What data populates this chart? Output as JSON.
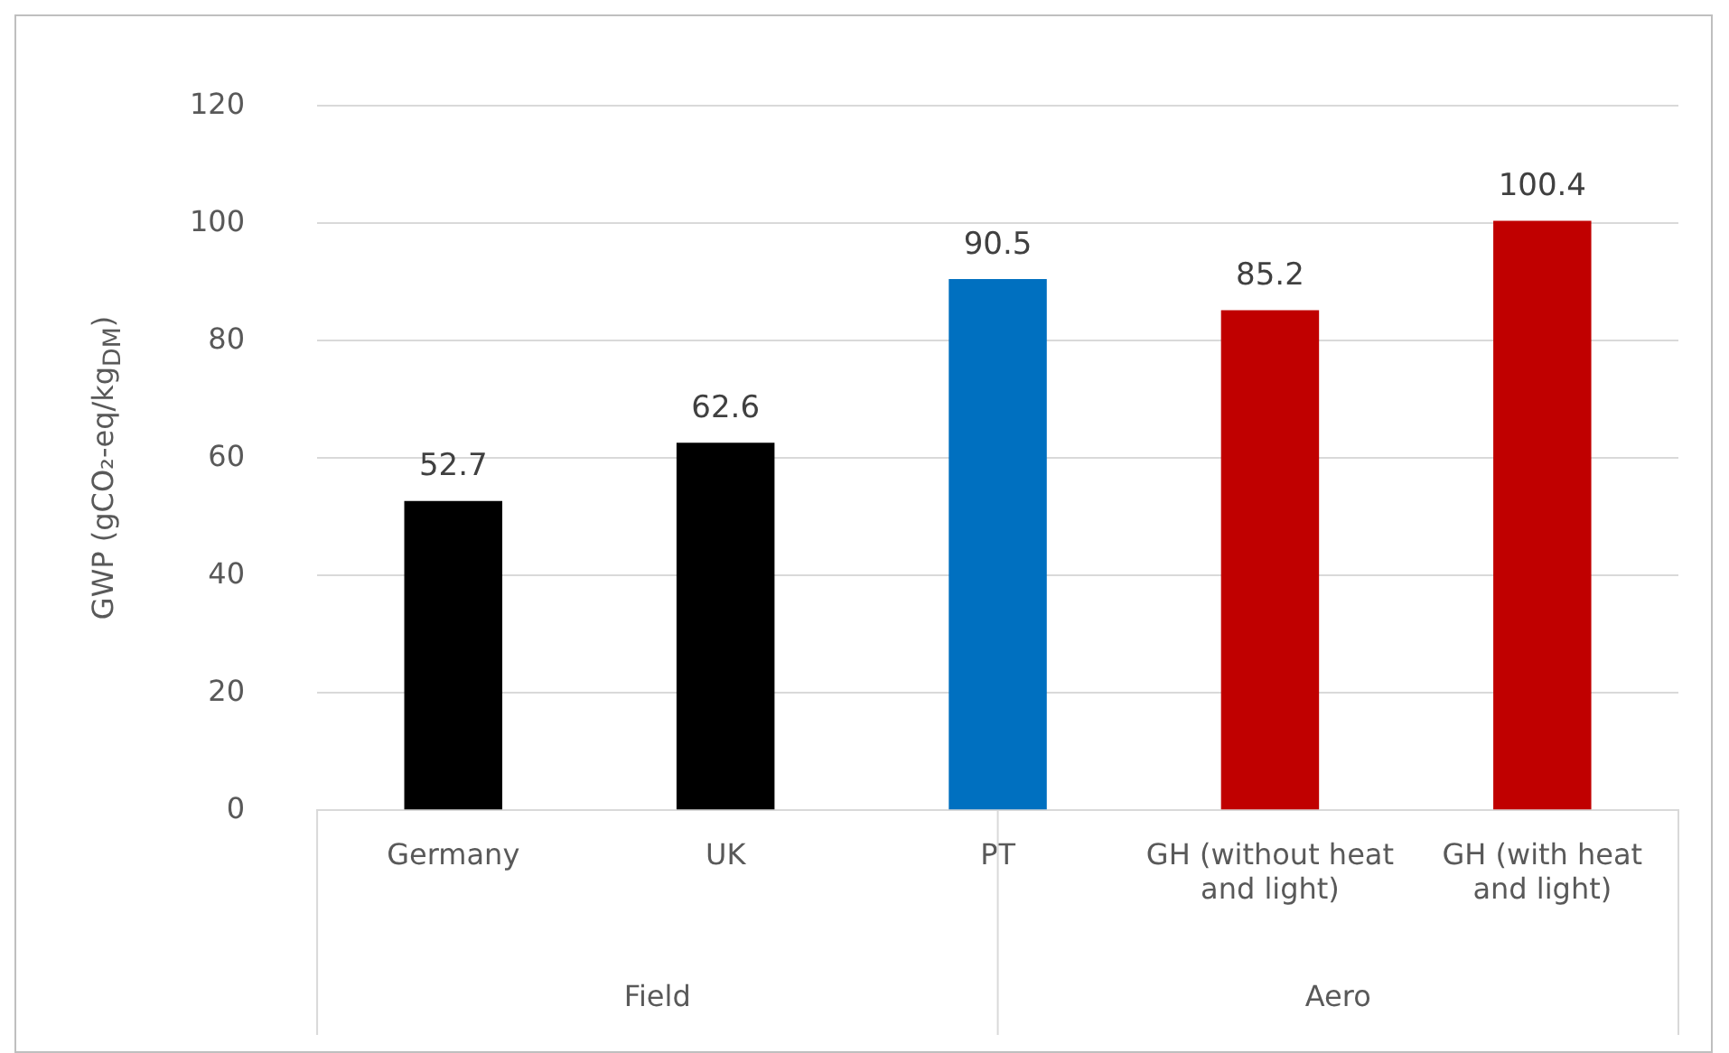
{
  "chart_data": {
    "type": "bar",
    "ylabel": "GWP (gCO₂-eq/kg$_{DM}$)",
    "categories": [
      "Germany",
      "UK",
      "PT",
      "GH (without heat and light)",
      "GH (with heat and light)"
    ],
    "values": [
      52.7,
      62.6,
      90.5,
      85.2,
      100.4
    ],
    "colors": [
      "#000000",
      "#000000",
      "#0070c0",
      "#c00000",
      "#c00000"
    ],
    "ylim": [
      0,
      120
    ],
    "yticks": [
      0,
      20,
      40,
      60,
      80,
      100,
      120
    ],
    "grid": "y",
    "data_labels": true,
    "legend": false,
    "annotations": [
      "Field",
      "Aero"
    ]
  }
}
